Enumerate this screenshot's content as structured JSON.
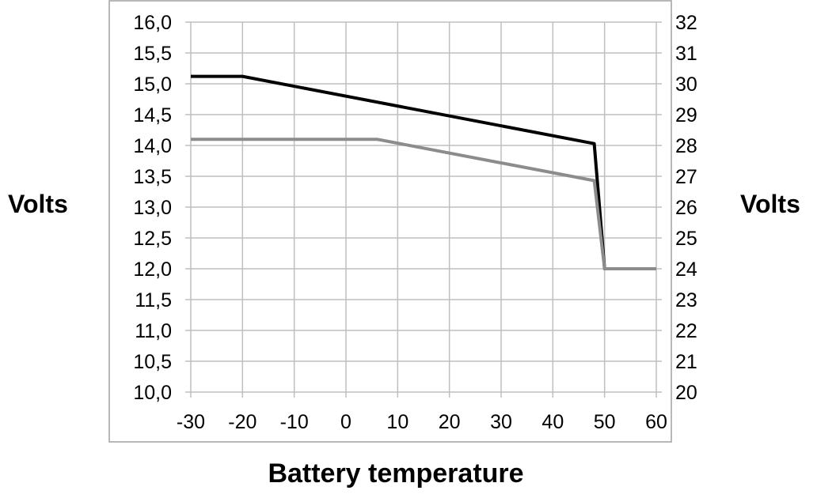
{
  "chart_data": {
    "type": "line",
    "xlabel": "Battery temperature",
    "ylabel_left": "Volts",
    "ylabel_right": "Volts",
    "xlim": [
      -30,
      60
    ],
    "ylim_left": [
      10.0,
      16.0
    ],
    "ylim_right": [
      20,
      32
    ],
    "grid": true,
    "x_ticks": [
      "-30",
      "-20",
      "-10",
      "0",
      "10",
      "20",
      "30",
      "40",
      "50",
      "60"
    ],
    "y_left_ticks": [
      "16,0",
      "15,5",
      "15,0",
      "14,5",
      "14,0",
      "13,5",
      "13,0",
      "12,5",
      "12,0",
      "11,5",
      "11,0",
      "10,5",
      "10,0"
    ],
    "y_right_ticks": [
      "32",
      "31",
      "30",
      "29",
      "28",
      "27",
      "26",
      "25",
      "24",
      "23",
      "22",
      "21",
      "20"
    ],
    "series": [
      {
        "color": "#000000",
        "points": [
          [
            -30,
            15.12
          ],
          [
            -20,
            15.12
          ],
          [
            48,
            14.03
          ],
          [
            50,
            12.0
          ],
          [
            60,
            12.0
          ]
        ]
      },
      {
        "color": "#8c8c8c",
        "points": [
          [
            -30,
            14.1
          ],
          [
            6,
            14.1
          ],
          [
            48,
            13.43
          ],
          [
            50,
            12.0
          ],
          [
            60,
            12.0
          ]
        ]
      }
    ]
  }
}
